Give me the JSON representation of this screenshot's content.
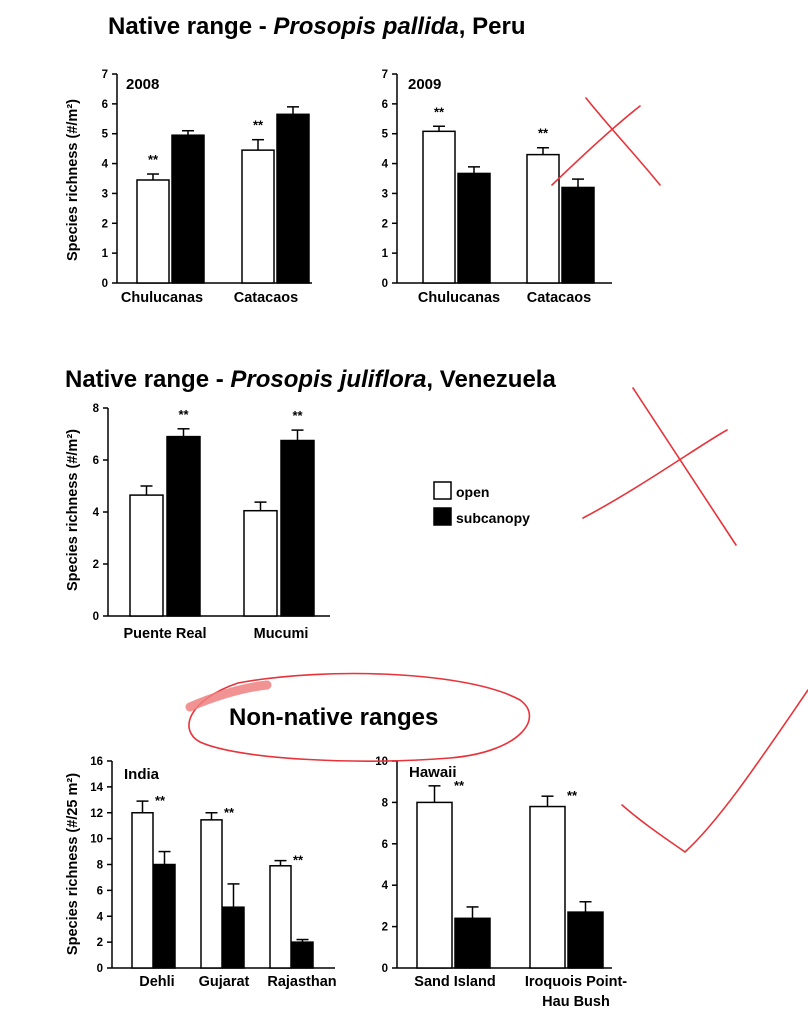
{
  "titles": {
    "peru_prefix": "Native range - ",
    "peru_species": "Prosopis pallida",
    "peru_suffix": ", Peru",
    "ven_prefix": "Native range - ",
    "ven_species": "Prosopis juliflora",
    "ven_suffix": ", Venezuela",
    "nonnative": "Non-native ranges"
  },
  "legend": {
    "open": "open",
    "subcanopy": "subcanopy"
  },
  "colors": {
    "open": "#ffffff",
    "subcanopy": "#000000",
    "annotation": "#e8333a",
    "highlight": "#f08080"
  },
  "chart_data": [
    {
      "id": "peru2008",
      "type": "bar",
      "panel_label": "2008",
      "ylabel": "Species richness (#/m²)",
      "ylim": [
        0,
        7
      ],
      "yticks": [
        0,
        1,
        2,
        3,
        4,
        5,
        6,
        7
      ],
      "categories": [
        "Chulucanas",
        "Catacaos"
      ],
      "series": [
        {
          "name": "open",
          "values": [
            3.45,
            4.45
          ],
          "errors": [
            0.2,
            0.35
          ]
        },
        {
          "name": "subcanopy",
          "values": [
            4.95,
            5.65
          ],
          "errors": [
            0.15,
            0.25
          ]
        }
      ],
      "significance": [
        {
          "category": 0,
          "over": "open",
          "text": "**"
        },
        {
          "category": 1,
          "over": "open",
          "text": "**"
        }
      ]
    },
    {
      "id": "peru2009",
      "type": "bar",
      "panel_label": "2009",
      "ylabel": "",
      "ylim": [
        0,
        7
      ],
      "yticks": [
        0,
        1,
        2,
        3,
        4,
        5,
        6,
        7
      ],
      "categories": [
        "Chulucanas",
        "Catacaos"
      ],
      "series": [
        {
          "name": "open",
          "values": [
            5.08,
            4.3
          ],
          "errors": [
            0.17,
            0.23
          ]
        },
        {
          "name": "subcanopy",
          "values": [
            3.67,
            3.2
          ],
          "errors": [
            0.22,
            0.28
          ]
        }
      ],
      "significance": [
        {
          "category": 0,
          "over": "open",
          "text": "**"
        },
        {
          "category": 1,
          "over": "open",
          "text": "**"
        }
      ]
    },
    {
      "id": "venezuela",
      "type": "bar",
      "panel_label": "",
      "ylabel": "Species richness (#/m²)",
      "ylim": [
        0,
        8
      ],
      "yticks": [
        0,
        2,
        4,
        6,
        8
      ],
      "categories": [
        "Puente Real",
        "Mucumi"
      ],
      "series": [
        {
          "name": "open",
          "values": [
            4.65,
            4.05
          ],
          "errors": [
            0.35,
            0.33
          ]
        },
        {
          "name": "subcanopy",
          "values": [
            6.9,
            6.75
          ],
          "errors": [
            0.3,
            0.4
          ]
        }
      ],
      "significance": [
        {
          "category": 0,
          "over": "subcanopy",
          "text": "**"
        },
        {
          "category": 1,
          "over": "subcanopy",
          "text": "**"
        }
      ]
    },
    {
      "id": "india",
      "type": "bar",
      "panel_label": "India",
      "ylabel": "Species richness (#/25 m²)",
      "ylim": [
        0,
        16
      ],
      "yticks": [
        0,
        2,
        4,
        6,
        8,
        10,
        12,
        14,
        16
      ],
      "categories": [
        "Dehli",
        "Gujarat",
        "Rajasthan"
      ],
      "series": [
        {
          "name": "open",
          "values": [
            12.0,
            11.45,
            7.9
          ],
          "errors": [
            0.9,
            0.55,
            0.4
          ]
        },
        {
          "name": "subcanopy",
          "values": [
            8.0,
            4.7,
            2.0
          ],
          "errors": [
            1.0,
            1.8,
            0.2
          ]
        }
      ],
      "significance": [
        {
          "category": 0,
          "over": "open",
          "text": "**"
        },
        {
          "category": 1,
          "over": "open",
          "text": "**"
        },
        {
          "category": 2,
          "over": "open",
          "text": "**"
        }
      ]
    },
    {
      "id": "hawaii",
      "type": "bar",
      "panel_label": "Hawaii",
      "ylabel": "",
      "ylim": [
        0,
        10
      ],
      "yticks": [
        0,
        2,
        4,
        6,
        8,
        10
      ],
      "categories": [
        "Sand Island",
        "Iroquois Point-\nHau Bush"
      ],
      "series": [
        {
          "name": "open",
          "values": [
            8.0,
            7.8
          ],
          "errors": [
            0.8,
            0.5
          ]
        },
        {
          "name": "subcanopy",
          "values": [
            2.4,
            2.7
          ],
          "errors": [
            0.55,
            0.5
          ]
        }
      ],
      "significance": [
        {
          "category": 0,
          "over": "open",
          "text": "**"
        },
        {
          "category": 1,
          "over": "open",
          "text": "**"
        }
      ]
    }
  ]
}
